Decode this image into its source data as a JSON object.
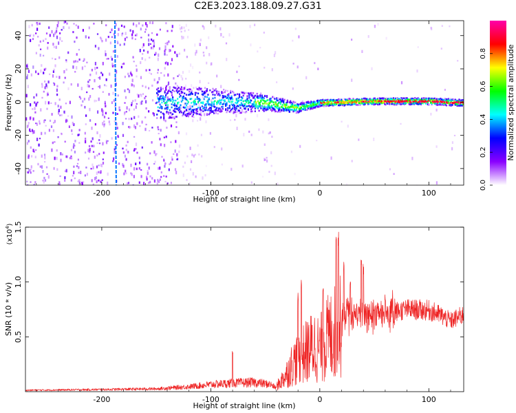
{
  "title": "C2E3.2023.188.09.27.G31",
  "chart_data": [
    {
      "type": "heatmap",
      "xlabel": "Height of straight line (km)",
      "ylabel": "Frequency (Hz)",
      "xlim": [
        -270,
        132
      ],
      "ylim": [
        -50,
        49
      ],
      "xticks": [
        -200,
        -100,
        0,
        100
      ],
      "yticks": [
        -40,
        -20,
        0,
        20,
        40
      ],
      "colorbar": {
        "label": "Normalized spectral amplitude",
        "range": [
          0,
          1
        ],
        "ticks": [
          "0.0",
          "0.2",
          "0.4",
          "0.6",
          "0.8"
        ],
        "ticks_values": [
          0,
          0.2,
          0.4,
          0.6,
          0.8
        ],
        "colormap": [
          "#ffffff",
          "#8a00ff",
          "#0000ff",
          "#00ffff",
          "#00ff00",
          "#ffff00",
          "#ff0000",
          "#ff00aa"
        ]
      },
      "features": {
        "vertical_line_height": -188,
        "scatter_noise_region": [
          -270,
          -100
        ],
        "band_center_frequency": [
          [
            -150,
            0
          ],
          [
            -100,
            1
          ],
          [
            -50,
            0
          ],
          [
            -20,
            -3
          ],
          [
            0,
            0
          ],
          [
            50,
            1
          ],
          [
            100,
            1
          ],
          [
            132,
            0
          ]
        ],
        "band_halfwidth_hz": [
          [
            -150,
            10
          ],
          [
            -100,
            8
          ],
          [
            -50,
            5
          ],
          [
            -20,
            3
          ],
          [
            0,
            2
          ],
          [
            132,
            2
          ]
        ]
      }
    },
    {
      "type": "line",
      "xlabel": "Height of straight line (km)",
      "ylabel": "SNR (10 * v/v)",
      "multiplier": "(x10",
      "multiplier_exp": "4",
      "multiplier_close": ")",
      "xlim": [
        -270,
        132
      ],
      "ylim": [
        0,
        1.5
      ],
      "xticks": [
        -200,
        -100,
        0,
        100
      ],
      "yticks": [
        0.5,
        1.0,
        1.5
      ],
      "ytick_labels": [
        "0.5",
        "1.0",
        "1.5"
      ],
      "color": "#ee2222",
      "envelope": [
        [
          -270,
          0.02
        ],
        [
          -200,
          0.03
        ],
        [
          -150,
          0.04
        ],
        [
          -120,
          0.07
        ],
        [
          -100,
          0.1
        ],
        [
          -80,
          0.12
        ],
        [
          -60,
          0.13
        ],
        [
          -45,
          0.1
        ],
        [
          -40,
          0.05
        ],
        [
          -35,
          0.12
        ],
        [
          -30,
          0.2
        ],
        [
          -25,
          0.3
        ],
        [
          -20,
          0.35
        ],
        [
          -15,
          0.4
        ],
        [
          -10,
          0.45
        ],
        [
          -5,
          0.5
        ],
        [
          0,
          0.45
        ],
        [
          5,
          0.55
        ],
        [
          10,
          0.6
        ],
        [
          15,
          0.65
        ],
        [
          20,
          0.7
        ],
        [
          30,
          0.72
        ],
        [
          40,
          0.73
        ],
        [
          60,
          0.73
        ],
        [
          80,
          0.77
        ],
        [
          100,
          0.76
        ],
        [
          110,
          0.72
        ],
        [
          120,
          0.66
        ],
        [
          132,
          0.72
        ]
      ],
      "peaks": [
        [
          -80,
          0.38
        ],
        [
          -20,
          0.9
        ],
        [
          -17,
          1.03
        ],
        [
          3,
          1.0
        ],
        [
          15,
          1.5
        ],
        [
          17,
          1.48
        ],
        [
          22,
          1.2
        ],
        [
          28,
          1.05
        ],
        [
          38,
          1.22
        ],
        [
          40,
          1.18
        ],
        [
          60,
          0.92
        ]
      ]
    }
  ]
}
